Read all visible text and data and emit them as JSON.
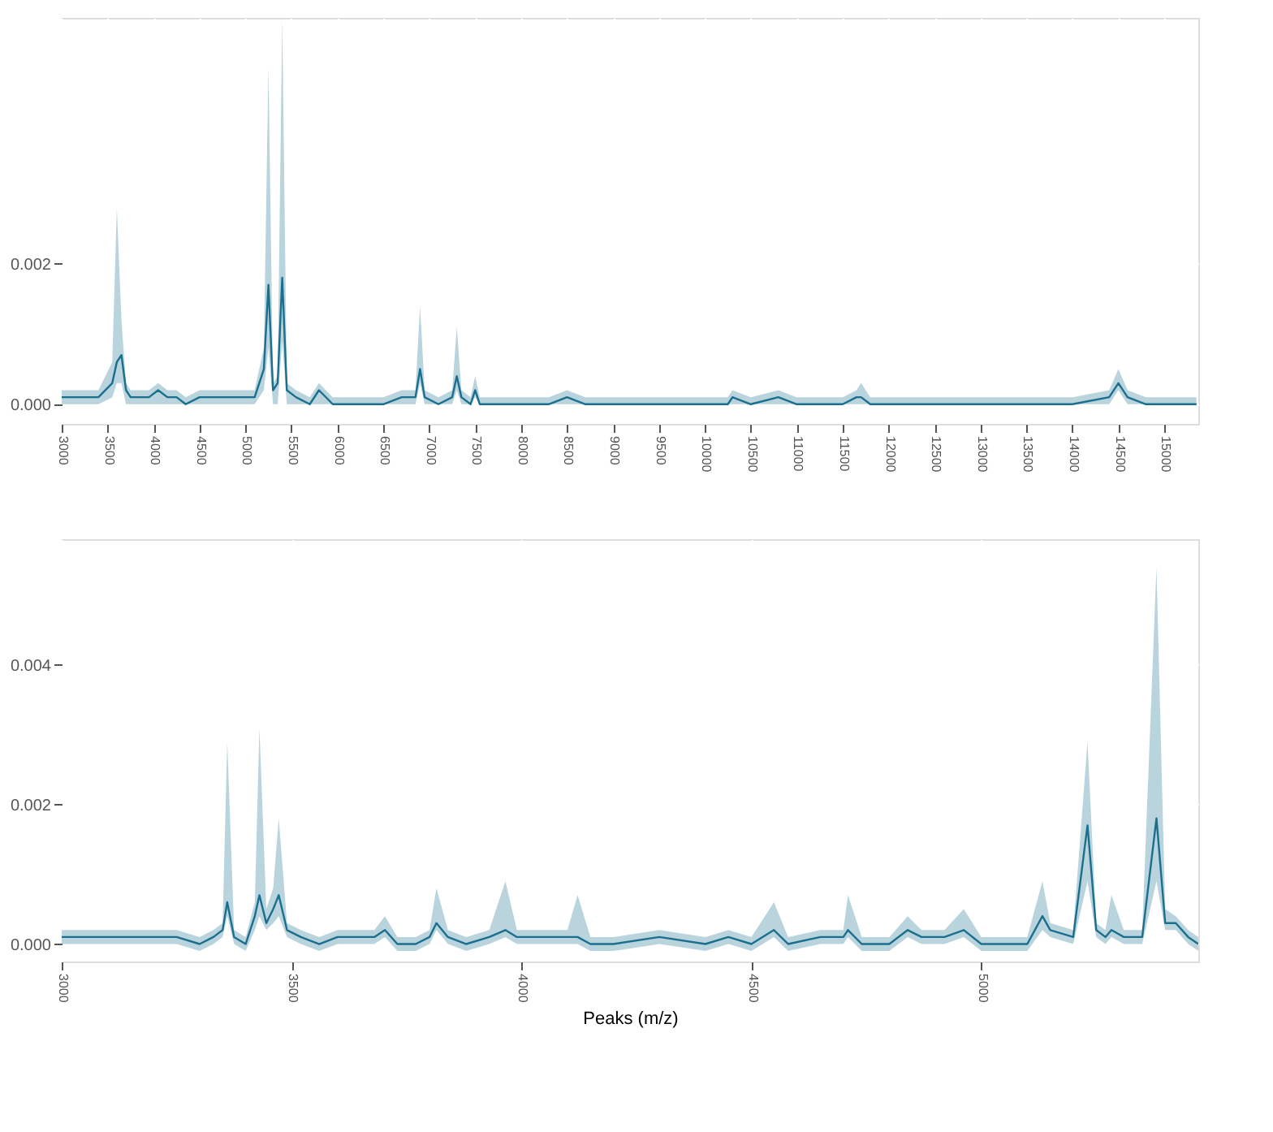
{
  "chart_data": [
    {
      "type": "line",
      "x": [
        3000,
        3200,
        3400,
        3550,
        3600,
        3650,
        3700,
        3750,
        3850,
        3950,
        4050,
        4150,
        4250,
        4350,
        4500,
        4600,
        4700,
        4800,
        4900,
        5000,
        5100,
        5200,
        5250,
        5300,
        5350,
        5400,
        5450,
        5550,
        5700,
        5800,
        5950,
        6100,
        6300,
        6500,
        6700,
        6850,
        6900,
        6950,
        7100,
        7250,
        7300,
        7350,
        7450,
        7500,
        7550,
        7700,
        8000,
        8300,
        8500,
        8700,
        9000,
        9500,
        10000,
        10250,
        10300,
        10500,
        10800,
        11000,
        11500,
        11650,
        11700,
        11800,
        12000,
        12500,
        13000,
        13500,
        14000,
        14400,
        14500,
        14600,
        14800,
        15000,
        15350
      ],
      "series": [
        {
          "color": "#1b6f8e",
          "values": [
            0.0001,
            0.0001,
            0.0001,
            0.0003,
            0.0006,
            0.0007,
            0.0002,
            0.0001,
            0.0001,
            0.0001,
            0.0002,
            0.0001,
            0.0001,
            0,
            0.0001,
            0.0001,
            0.0001,
            0.0001,
            0.0001,
            0.0001,
            0.0001,
            0.0005,
            0.0017,
            0.0002,
            0.0003,
            0.0018,
            0.0002,
            0.0001,
            0,
            0.0002,
            0,
            0,
            0,
            0,
            0.0001,
            0.0001,
            0.0005,
            0.0001,
            0,
            0.0001,
            0.0004,
            0.0001,
            0,
            0.0002,
            0,
            0,
            0,
            0,
            0.0001,
            0,
            0,
            0,
            0,
            0,
            0.0001,
            0,
            0.0001,
            0,
            0,
            0.0001,
            0.0001,
            0,
            0,
            0,
            0,
            0,
            0,
            0.0001,
            0.0003,
            0.0001,
            0,
            0,
            0
          ],
          "lower": [
            0,
            0,
            0,
            0.0001,
            0.0003,
            0.0003,
            0,
            0,
            0,
            0,
            0,
            0,
            0,
            0,
            0,
            0,
            0,
            0,
            0,
            0,
            0,
            0.0002,
            0.0008,
            0,
            0,
            0.0009,
            0,
            0,
            0,
            0,
            0,
            0,
            0,
            0,
            0,
            0,
            0.0003,
            0,
            0,
            0,
            0.0002,
            0,
            0,
            0.0001,
            0,
            0,
            0,
            0,
            0,
            0,
            0,
            0,
            0,
            0,
            0,
            0,
            0,
            0,
            0,
            0,
            0,
            0,
            0,
            0,
            0,
            0,
            0,
            0,
            0.0002,
            0,
            0,
            0,
            0
          ],
          "upper": [
            0.0002,
            0.0002,
            0.0002,
            0.0006,
            0.0028,
            0.0012,
            0.0003,
            0.0002,
            0.0002,
            0.0002,
            0.0003,
            0.0002,
            0.0002,
            0.0001,
            0.0002,
            0.0002,
            0.0002,
            0.0002,
            0.0002,
            0.0002,
            0.0002,
            0.0008,
            0.0048,
            0.0003,
            0.0004,
            0.0055,
            0.0003,
            0.0002,
            0.0001,
            0.0003,
            0.0001,
            0.0001,
            0.0001,
            0.0001,
            0.0002,
            0.0002,
            0.0014,
            0.0002,
            0.0001,
            0.0002,
            0.0011,
            0.0002,
            0.0001,
            0.0004,
            0.0001,
            0.0001,
            0.0001,
            0.0001,
            0.0002,
            0.0001,
            0.0001,
            0.0001,
            0.0001,
            0.0001,
            0.0002,
            0.0001,
            0.0002,
            0.0001,
            0.0001,
            0.0002,
            0.0003,
            0.0001,
            0.0001,
            0.0001,
            0.0001,
            0.0001,
            0.0001,
            0.0002,
            0.0005,
            0.0002,
            0.0001,
            0.0001,
            0.0001
          ]
        }
      ],
      "xlim": [
        3000,
        15370
      ],
      "xticks": [
        3000,
        3500,
        4000,
        4500,
        5000,
        5500,
        6000,
        6500,
        7000,
        7500,
        8000,
        8500,
        9000,
        9500,
        10000,
        10500,
        11000,
        11500,
        12000,
        12500,
        13000,
        13500,
        14000,
        14500,
        15000
      ],
      "ylim": [
        -0.00028,
        0.0055
      ],
      "yticks": [
        {
          "value": 0,
          "label": "0.000"
        },
        {
          "value": 0.002,
          "label": "0.002"
        }
      ],
      "grid": true,
      "marker": "none",
      "line_style": "solid"
    },
    {
      "type": "line",
      "xlabel": "Peaks (m/z)",
      "x": [
        3000,
        3050,
        3100,
        3150,
        3200,
        3250,
        3300,
        3330,
        3350,
        3360,
        3375,
        3400,
        3420,
        3430,
        3445,
        3460,
        3472,
        3490,
        3520,
        3560,
        3600,
        3650,
        3680,
        3703,
        3730,
        3770,
        3800,
        3815,
        3840,
        3880,
        3930,
        3965,
        3990,
        4050,
        4100,
        4122,
        4150,
        4200,
        4300,
        4400,
        4450,
        4500,
        4549,
        4580,
        4650,
        4700,
        4710,
        4740,
        4800,
        4840,
        4870,
        4920,
        4962,
        5000,
        5060,
        5100,
        5133,
        5150,
        5200,
        5231,
        5250,
        5270,
        5283,
        5310,
        5350,
        5381,
        5400,
        5423,
        5450,
        5472
      ],
      "series": [
        {
          "color": "#1b6f8e",
          "values": [
            0.0001,
            0.0001,
            0.0001,
            0.0001,
            0.0001,
            0.0001,
            0,
            0.0001,
            0.0002,
            0.0006,
            0.0001,
            0,
            0.0004,
            0.0007,
            0.0003,
            0.0005,
            0.0007,
            0.0002,
            0.0001,
            0,
            0.0001,
            0.0001,
            0.0001,
            0.0002,
            0,
            0,
            0.0001,
            0.0003,
            0.0001,
            0,
            0.0001,
            0.0002,
            0.0001,
            0.0001,
            0.0001,
            0.0001,
            0,
            0,
            0.0001,
            0,
            0.0001,
            0,
            0.0002,
            0,
            0.0001,
            0.0001,
            0.0002,
            0,
            0,
            0.0002,
            0.0001,
            0.0001,
            0.0002,
            0,
            0,
            0,
            0.0004,
            0.0002,
            0.0001,
            0.0017,
            0.0002,
            0.0001,
            0.0002,
            0.0001,
            0.0001,
            0.0018,
            0.0003,
            0.0003,
            0.0001,
            0
          ],
          "lower": [
            0,
            0,
            0,
            0,
            0,
            0,
            -0.0001,
            0,
            0.0001,
            0.0004,
            0,
            -0.0001,
            0.0002,
            0.0004,
            0.0002,
            0.0003,
            0.0004,
            0.0001,
            0,
            -0.0001,
            0,
            0,
            0,
            0.0001,
            -0.0001,
            -0.0001,
            0,
            0.0002,
            0,
            -0.0001,
            0,
            0.0001,
            0,
            0,
            0,
            0,
            -0.0001,
            -0.0001,
            0,
            -0.0001,
            0,
            -0.0001,
            0.0001,
            -0.0001,
            0,
            0,
            0.0001,
            -0.0001,
            -0.0001,
            0.0001,
            0,
            0,
            0.0001,
            -0.0001,
            -0.0001,
            -0.0001,
            0.0002,
            0.0001,
            0,
            0.0009,
            0.0001,
            0,
            0.0001,
            0,
            0,
            0.0009,
            0.0002,
            0.0002,
            0,
            -0.0001
          ],
          "upper": [
            0.0002,
            0.0002,
            0.0002,
            0.0002,
            0.0002,
            0.0002,
            0.0001,
            0.0002,
            0.0003,
            0.0029,
            0.0002,
            0.0001,
            0.0006,
            0.0031,
            0.0005,
            0.0008,
            0.0018,
            0.0003,
            0.0002,
            0.0001,
            0.0002,
            0.0002,
            0.0002,
            0.0004,
            0.0001,
            0.0001,
            0.0002,
            0.0008,
            0.0002,
            0.0001,
            0.0002,
            0.0009,
            0.0002,
            0.0002,
            0.0002,
            0.0007,
            0.0001,
            0.0001,
            0.0002,
            0.0001,
            0.0002,
            0.0001,
            0.0006,
            0.0001,
            0.0002,
            0.0002,
            0.0007,
            0.0001,
            0.0001,
            0.0004,
            0.0002,
            0.0002,
            0.0005,
            0.0001,
            0.0001,
            0.0001,
            0.0009,
            0.0003,
            0.0002,
            0.0029,
            0.0003,
            0.0002,
            0.0007,
            0.0002,
            0.0002,
            0.0054,
            0.0005,
            0.0004,
            0.0002,
            0.0001
          ]
        }
      ],
      "xlim": [
        3000,
        5472
      ],
      "xticks": [
        3000,
        3500,
        4000,
        4500,
        5000
      ],
      "ylim": [
        -0.00025,
        0.0058
      ],
      "yticks": [
        {
          "value": 0,
          "label": "0.000"
        },
        {
          "value": 0.002,
          "label": "0.002"
        },
        {
          "value": 0.004,
          "label": "0.004"
        }
      ],
      "grid": true,
      "marker": "none",
      "line_style": "solid"
    }
  ]
}
